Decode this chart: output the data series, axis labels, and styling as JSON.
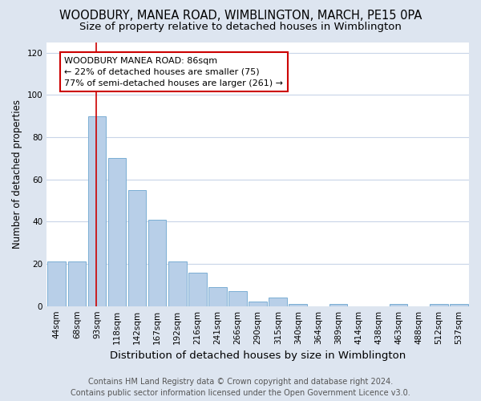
{
  "title": "WOODBURY, MANEA ROAD, WIMBLINGTON, MARCH, PE15 0PA",
  "subtitle": "Size of property relative to detached houses in Wimblington",
  "xlabel": "Distribution of detached houses by size in Wimblington",
  "ylabel": "Number of detached properties",
  "categories": [
    "44sqm",
    "68sqm",
    "93sqm",
    "118sqm",
    "142sqm",
    "167sqm",
    "192sqm",
    "216sqm",
    "241sqm",
    "266sqm",
    "290sqm",
    "315sqm",
    "340sqm",
    "364sqm",
    "389sqm",
    "414sqm",
    "438sqm",
    "463sqm",
    "488sqm",
    "512sqm",
    "537sqm"
  ],
  "values": [
    21,
    21,
    90,
    70,
    55,
    41,
    21,
    16,
    9,
    7,
    2,
    4,
    1,
    0,
    1,
    0,
    0,
    1,
    0,
    1,
    1
  ],
  "bar_color": "#b8cfe8",
  "bar_edge_color": "#7aaed4",
  "fig_bg_color": "#dde5f0",
  "plot_bg_color": "#ffffff",
  "grid_color": "#c8d4e8",
  "red_line_x": 1.98,
  "annotation_text": "WOODBURY MANEA ROAD: 86sqm\n← 22% of detached houses are smaller (75)\n77% of semi-detached houses are larger (261) →",
  "annotation_box_color": "#ffffff",
  "annotation_box_edge": "#cc0000",
  "ylim": [
    0,
    125
  ],
  "yticks": [
    0,
    20,
    40,
    60,
    80,
    100,
    120
  ],
  "footer": "Contains HM Land Registry data © Crown copyright and database right 2024.\nContains public sector information licensed under the Open Government Licence v3.0.",
  "title_fontsize": 10.5,
  "subtitle_fontsize": 9.5,
  "xlabel_fontsize": 9.5,
  "ylabel_fontsize": 8.5,
  "tick_fontsize": 7.5,
  "annotation_fontsize": 8,
  "footer_fontsize": 7
}
